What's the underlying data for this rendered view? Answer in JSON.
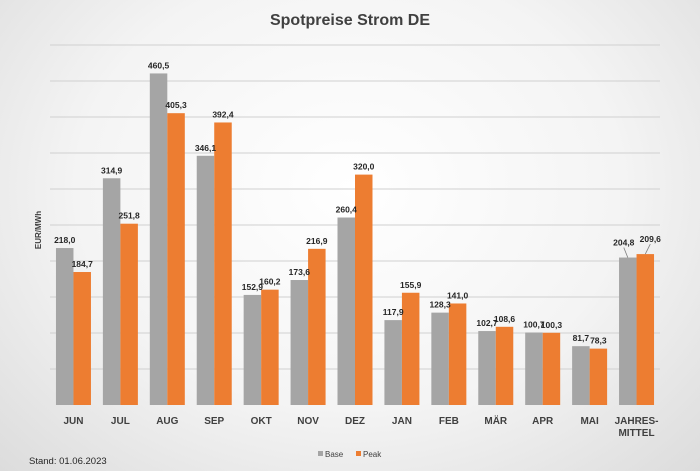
{
  "chart_data": {
    "type": "bar",
    "title": "Spotpreise Strom DE",
    "ylabel": "EUR/MWh",
    "xlabel": "",
    "ylim": [
      0,
      500
    ],
    "grid": true,
    "legend_position": "bottom-center",
    "categories": [
      "JUN",
      "JUL",
      "AUG",
      "SEP",
      "OKT",
      "NOV",
      "DEZ",
      "JAN",
      "FEB",
      "MÄR",
      "APR",
      "MAI",
      "JAHRES-\nMITTEL"
    ],
    "category_lines": [
      [
        "JUN"
      ],
      [
        "JUL"
      ],
      [
        "AUG"
      ],
      [
        "SEP"
      ],
      [
        "OKT"
      ],
      [
        "NOV"
      ],
      [
        "DEZ"
      ],
      [
        "JAN"
      ],
      [
        "FEB"
      ],
      [
        "MÄR"
      ],
      [
        "APR"
      ],
      [
        "MAI"
      ],
      [
        "JAHRES-",
        "MITTEL"
      ]
    ],
    "series": [
      {
        "name": "Base",
        "color": "#a5a5a5",
        "values": [
          218.0,
          314.9,
          460.5,
          346.1,
          152.9,
          173.6,
          260.4,
          117.9,
          128.3,
          102.7,
          100.7,
          81.7,
          204.8
        ],
        "labels": [
          "218,0",
          "314,9",
          "460,5",
          "346,1",
          "152,9",
          "173,6",
          "260,4",
          "117,9",
          "128,3",
          "102,7",
          "100,7",
          "81,7",
          "204,8"
        ]
      },
      {
        "name": "Peak",
        "color": "#ed7d31",
        "values": [
          184.7,
          251.8,
          405.3,
          392.4,
          160.2,
          216.9,
          320.0,
          155.9,
          141.0,
          108.6,
          100.3,
          78.3,
          209.6
        ],
        "labels": [
          "184,7",
          "251,8",
          "405,3",
          "392,4",
          "160,2",
          "216,9",
          "320,0",
          "155,9",
          "141,0",
          "108,6",
          "100,3",
          "78,3",
          "209,6"
        ]
      }
    ]
  },
  "footnote": "Stand: 01.06.2023"
}
